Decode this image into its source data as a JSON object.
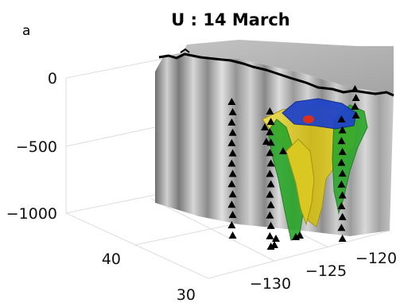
{
  "chart_data": {
    "type": "3d-isosurface",
    "panel_label": "a",
    "title": "U : 14 March",
    "z_axis": {
      "ticks": [
        0,
        -500,
        -1000
      ],
      "tick_labels": [
        "0",
        "−500",
        "−1000"
      ],
      "range": [
        -1100,
        0
      ]
    },
    "lat_axis": {
      "ticks": [
        30,
        40
      ],
      "tick_labels": [
        "30",
        "40"
      ]
    },
    "lon_axis": {
      "ticks": [
        -130,
        -125,
        -120
      ],
      "tick_labels": [
        "−130",
        "−125",
        "−120"
      ]
    },
    "surfaces": [
      {
        "color": "#e3d41e"
      },
      {
        "color": "#2aa62a"
      },
      {
        "color": "#2044c8"
      },
      {
        "color": "#d8301c"
      }
    ],
    "station_marker_color": "#000000",
    "grid": true
  }
}
